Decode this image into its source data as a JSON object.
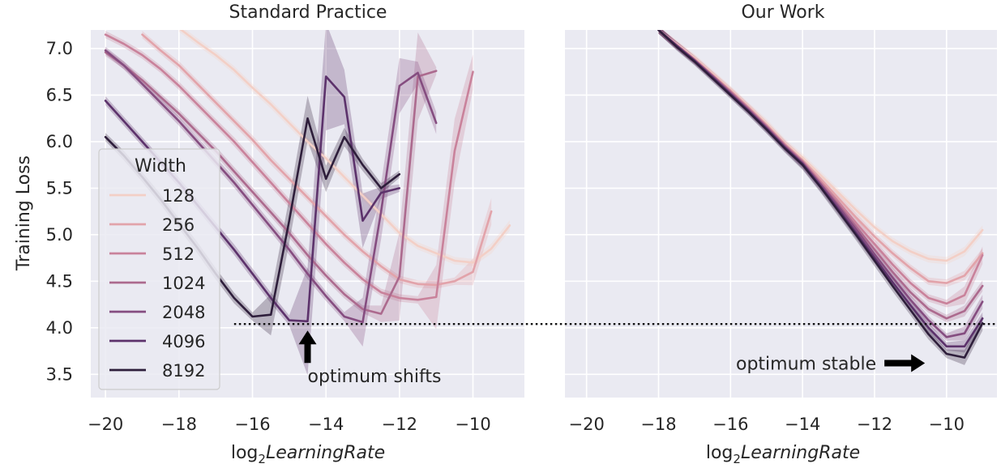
{
  "figure": {
    "ylabel": "Training Loss",
    "legend_title": "Width",
    "xlabel_prefix": "log",
    "xlabel_sub": "2",
    "xlabel_main": "LearningRate",
    "baseline_y": 4.04
  },
  "colors": {
    "panel_bg": "#eaeaf2",
    "grid": "#ffffff",
    "text": "#262626",
    "series": [
      "#f3cfc6",
      "#e2a3aa",
      "#c9829b",
      "#ac6a8e",
      "#854d80",
      "#5c326b",
      "#2e1e3b"
    ]
  },
  "chart_data": [
    {
      "type": "line",
      "title": "Standard Practice",
      "xlim": [
        -20.4,
        -8.6
      ],
      "ylim": [
        3.25,
        7.2
      ],
      "xticks": [
        -20,
        -18,
        -16,
        -14,
        -12,
        -10
      ],
      "xtick_labels": [
        "−20",
        "−18",
        "−16",
        "−14",
        "−12",
        "−10"
      ],
      "yticks": [
        3.5,
        4.0,
        4.5,
        5.0,
        5.5,
        6.0,
        6.5,
        7.0
      ],
      "ytick_labels": [
        "3.5",
        "4.0",
        "4.5",
        "5.0",
        "5.5",
        "6.0",
        "6.5",
        "7.0"
      ],
      "legend": {
        "title": "Width",
        "position": "lower-left"
      },
      "series": [
        {
          "name": "128",
          "x": [
            -18,
            -17.5,
            -17,
            -16.5,
            -16,
            -15.5,
            -15,
            -14.5,
            -14,
            -13.5,
            -13,
            -12.5,
            -12,
            -11.5,
            -11,
            -10.5,
            -10,
            -9.5,
            -9
          ],
          "y": [
            7.22,
            7.07,
            6.93,
            6.77,
            6.58,
            6.4,
            6.2,
            6.0,
            5.82,
            5.62,
            5.42,
            5.22,
            5.02,
            4.88,
            4.8,
            4.72,
            4.7,
            4.85,
            5.1
          ]
        },
        {
          "name": "256",
          "x": [
            -19,
            -18.5,
            -18,
            -17.5,
            -17,
            -16.5,
            -16,
            -15.5,
            -15,
            -14.5,
            -14,
            -13.5,
            -13,
            -12.5,
            -12,
            -11.5,
            -11,
            -10.5,
            -10,
            -9.5
          ],
          "y": [
            7.15,
            6.98,
            6.82,
            6.62,
            6.42,
            6.22,
            6.02,
            5.8,
            5.6,
            5.4,
            5.2,
            5.0,
            4.82,
            4.66,
            4.52,
            4.47,
            4.46,
            4.5,
            4.6,
            5.25
          ]
        },
        {
          "name": "512",
          "x": [
            -20,
            -19.5,
            -19,
            -18.5,
            -18,
            -17.5,
            -17,
            -16.5,
            -16,
            -15.5,
            -15,
            -14.5,
            -14,
            -13.5,
            -13,
            -12.5,
            -12,
            -11.5,
            -11,
            -10.5,
            -10
          ],
          "y": [
            7.15,
            7.05,
            6.93,
            6.78,
            6.6,
            6.4,
            6.2,
            6.0,
            5.78,
            5.56,
            5.34,
            5.12,
            4.9,
            4.7,
            4.52,
            4.38,
            4.32,
            4.3,
            4.33,
            5.9,
            6.75
          ]
        },
        {
          "name": "1024",
          "x": [
            -20,
            -19.5,
            -19,
            -18.5,
            -18,
            -17.5,
            -17,
            -16.5,
            -16,
            -15.5,
            -15,
            -14.5,
            -14,
            -13.5,
            -13,
            -12.5,
            -12,
            -11.5,
            -11
          ],
          "y": [
            6.96,
            6.82,
            6.66,
            6.48,
            6.3,
            6.1,
            5.9,
            5.68,
            5.46,
            5.24,
            5.02,
            4.78,
            4.56,
            4.36,
            4.2,
            4.15,
            4.55,
            6.7,
            6.76
          ]
        },
        {
          "name": "2048",
          "x": [
            -20,
            -19.5,
            -19,
            -18.5,
            -18,
            -17.5,
            -17,
            -16.5,
            -16,
            -15.5,
            -15,
            -14.5,
            -14,
            -13.5,
            -13,
            -12.5,
            -12,
            -11.5,
            -11
          ],
          "y": [
            6.98,
            6.82,
            6.62,
            6.42,
            6.22,
            6.0,
            5.78,
            5.56,
            5.32,
            5.08,
            4.84,
            4.58,
            4.34,
            4.12,
            4.06,
            5.25,
            6.6,
            6.74,
            6.2
          ]
        },
        {
          "name": "4096",
          "x": [
            -20,
            -19.5,
            -19,
            -18.5,
            -18,
            -17.5,
            -17,
            -16.5,
            -16,
            -15.5,
            -15,
            -14.5,
            -14,
            -13.5,
            -13,
            -12.5,
            -12
          ],
          "y": [
            6.44,
            6.22,
            6.0,
            5.78,
            5.56,
            5.32,
            5.08,
            4.84,
            4.58,
            4.32,
            4.08,
            4.07,
            6.7,
            6.48,
            5.15,
            5.45,
            5.5
          ]
        },
        {
          "name": "8192",
          "x": [
            -20,
            -19.5,
            -19,
            -18.5,
            -18,
            -17.5,
            -17,
            -16.5,
            -16,
            -15.5,
            -15,
            -14.5,
            -14,
            -13.5,
            -13,
            -12.5,
            -12
          ],
          "y": [
            6.05,
            5.85,
            5.62,
            5.38,
            5.12,
            4.86,
            4.58,
            4.32,
            4.12,
            4.14,
            5.15,
            6.25,
            5.6,
            6.05,
            5.75,
            5.5,
            5.65
          ]
        }
      ],
      "annotation": {
        "text": "optimum shifts",
        "arrow": "up",
        "x": -14.5,
        "y": 4.04
      }
    },
    {
      "type": "line",
      "title": "Our Work",
      "xlim": [
        -20.6,
        -8.6
      ],
      "ylim": [
        3.25,
        7.2
      ],
      "xticks": [
        -20,
        -18,
        -16,
        -14,
        -12,
        -10
      ],
      "xtick_labels": [
        "−20",
        "−18",
        "−16",
        "−14",
        "−12",
        "−10"
      ],
      "series": [
        {
          "name": "128",
          "x": [
            -18,
            -17.5,
            -17,
            -16.5,
            -16,
            -15.5,
            -15,
            -14.5,
            -14,
            -13.5,
            -13,
            -12.5,
            -12,
            -11.5,
            -11,
            -10.5,
            -10,
            -9.5,
            -9
          ],
          "y": [
            7.2,
            7.05,
            6.9,
            6.73,
            6.56,
            6.38,
            6.2,
            5.99,
            5.83,
            5.64,
            5.45,
            5.26,
            5.08,
            4.93,
            4.82,
            4.74,
            4.72,
            4.82,
            5.05
          ]
        },
        {
          "name": "256",
          "x": [
            -18,
            -17.5,
            -17,
            -16.5,
            -16,
            -15.5,
            -15,
            -14.5,
            -14,
            -13.5,
            -13,
            -12.5,
            -12,
            -11.5,
            -11,
            -10.5,
            -10,
            -9.5,
            -9
          ],
          "y": [
            7.2,
            7.04,
            6.89,
            6.72,
            6.55,
            6.37,
            6.18,
            5.98,
            5.8,
            5.6,
            5.39,
            5.18,
            4.98,
            4.8,
            4.64,
            4.5,
            4.48,
            4.56,
            4.8
          ]
        },
        {
          "name": "512",
          "x": [
            -18,
            -17.5,
            -17,
            -16.5,
            -16,
            -15.5,
            -15,
            -14.5,
            -14,
            -13.5,
            -13,
            -12.5,
            -12,
            -11.5,
            -11,
            -10.5,
            -10,
            -9.5,
            -9
          ],
          "y": [
            7.2,
            7.04,
            6.88,
            6.71,
            6.54,
            6.36,
            6.17,
            5.97,
            5.79,
            5.57,
            5.35,
            5.12,
            4.9,
            4.68,
            4.48,
            4.32,
            4.26,
            4.35,
            4.78
          ]
        },
        {
          "name": "1024",
          "x": [
            -18,
            -17.5,
            -17,
            -16.5,
            -16,
            -15.5,
            -15,
            -14.5,
            -14,
            -13.5,
            -13,
            -12.5,
            -12,
            -11.5,
            -11,
            -10.5,
            -10,
            -9.5,
            -9
          ],
          "y": [
            7.2,
            7.04,
            6.88,
            6.71,
            6.53,
            6.35,
            6.16,
            5.96,
            5.78,
            5.55,
            5.32,
            5.08,
            4.84,
            4.6,
            4.38,
            4.2,
            4.1,
            4.18,
            4.45
          ]
        },
        {
          "name": "2048",
          "x": [
            -18,
            -17.5,
            -17,
            -16.5,
            -16,
            -15.5,
            -15,
            -14.5,
            -14,
            -13.5,
            -13,
            -12.5,
            -12,
            -11.5,
            -11,
            -10.5,
            -10,
            -9.5,
            -9
          ],
          "y": [
            7.2,
            7.03,
            6.87,
            6.7,
            6.52,
            6.34,
            6.15,
            5.95,
            5.77,
            5.54,
            5.3,
            5.05,
            4.79,
            4.54,
            4.3,
            4.08,
            3.9,
            3.94,
            4.28
          ]
        },
        {
          "name": "4096",
          "x": [
            -18,
            -17.5,
            -17,
            -16.5,
            -16,
            -15.5,
            -15,
            -14.5,
            -14,
            -13.5,
            -13,
            -12.5,
            -12,
            -11.5,
            -11,
            -10.5,
            -10,
            -9.5,
            -9
          ],
          "y": [
            7.2,
            7.03,
            6.87,
            6.69,
            6.51,
            6.33,
            6.14,
            5.94,
            5.76,
            5.52,
            5.27,
            5.01,
            4.75,
            4.49,
            4.24,
            4.0,
            3.8,
            3.8,
            4.1
          ]
        },
        {
          "name": "8192",
          "x": [
            -18,
            -17.5,
            -17,
            -16.5,
            -16,
            -15.5,
            -15,
            -14.5,
            -14,
            -13.5,
            -13,
            -12.5,
            -12,
            -11.5,
            -11,
            -10.5,
            -10,
            -9.5,
            -9
          ],
          "y": [
            7.2,
            7.02,
            6.86,
            6.68,
            6.5,
            6.32,
            6.13,
            5.93,
            5.75,
            5.51,
            5.25,
            4.99,
            4.72,
            4.45,
            4.19,
            3.93,
            3.72,
            3.68,
            4.05
          ]
        }
      ],
      "annotation": {
        "text": "optimum stable",
        "arrow": "right",
        "x": -9.5,
        "y": 3.7
      }
    }
  ]
}
